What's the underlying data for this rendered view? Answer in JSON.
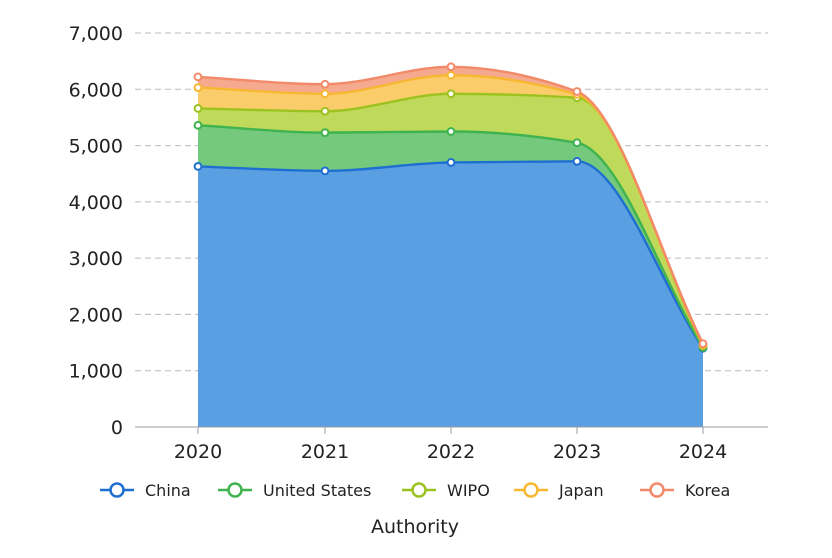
{
  "chart_data": {
    "type": "area",
    "stacked": true,
    "title": "",
    "xlabel": "Authority",
    "ylabel": "",
    "categories": [
      "2020",
      "2021",
      "2022",
      "2023",
      "2024"
    ],
    "ylim": [
      0,
      7000
    ],
    "yticks": [
      "0",
      "1,000",
      "2,000",
      "3,000",
      "4,000",
      "5,000",
      "6,000",
      "7,000"
    ],
    "grid": true,
    "legend_position": "bottom",
    "series": [
      {
        "name": "China",
        "color": "#1f6fd1",
        "fill": "#5b9fe3",
        "values": [
          4630,
          4550,
          4700,
          4720,
          1400
        ]
      },
      {
        "name": "United States",
        "color": "#3fb34f",
        "fill": "#74c97c",
        "values": [
          730,
          680,
          550,
          330,
          15
        ]
      },
      {
        "name": "WIPO",
        "color": "#9cc21f",
        "fill": "#bfd95a",
        "values": [
          300,
          380,
          670,
          800,
          25
        ]
      },
      {
        "name": "Japan",
        "color": "#f7b731",
        "fill": "#fbcd6a",
        "values": [
          370,
          310,
          330,
          60,
          20
        ]
      },
      {
        "name": "Korea",
        "color": "#f28a6a",
        "fill": "#f5a98f",
        "values": [
          190,
          170,
          150,
          50,
          20
        ]
      }
    ]
  }
}
